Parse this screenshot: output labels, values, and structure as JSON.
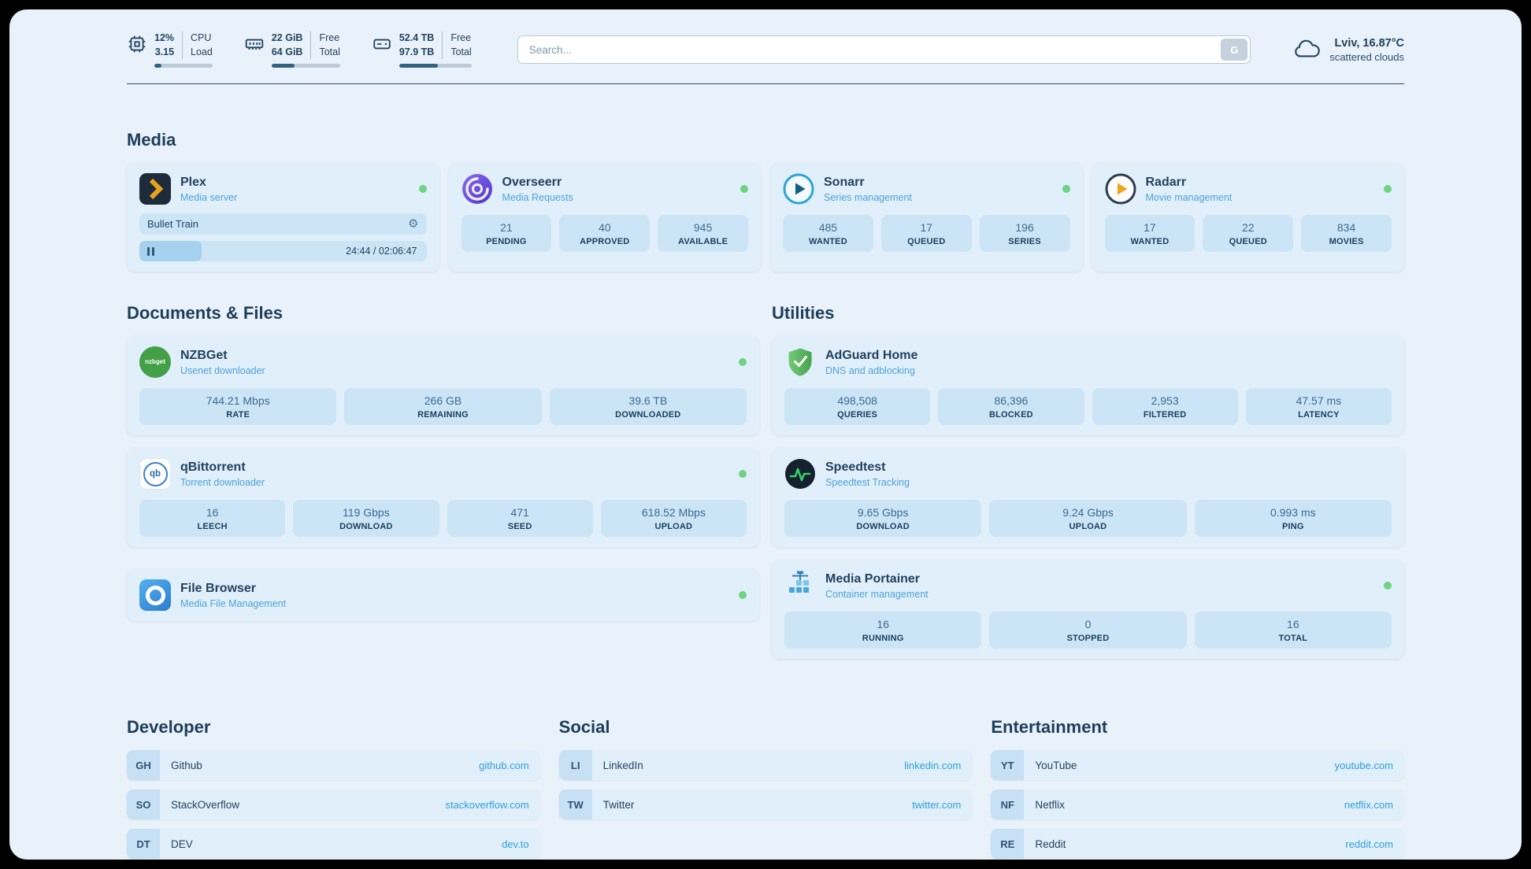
{
  "app": {
    "search_placeholder": "Search...",
    "search_button": "G"
  },
  "system": {
    "cpu": {
      "icon": "cpu-icon",
      "value_top": "12%",
      "value_bottom": "3.15",
      "label_top": "CPU",
      "label_bottom": "Load",
      "progress": 12
    },
    "ram": {
      "icon": "ram-icon",
      "value_top": "22 GiB",
      "value_bottom": "64 GiB",
      "label_top": "Free",
      "label_bottom": "Total",
      "progress": 34
    },
    "disk": {
      "icon": "disk-icon",
      "value_top": "52.4 TB",
      "value_bottom": "97.9 TB",
      "label_top": "Free",
      "label_bottom": "Total",
      "progress": 54
    }
  },
  "weather": {
    "icon": "cloud-icon",
    "location": "Lviv, 16.87°C",
    "condition": "scattered clouds"
  },
  "sections": {
    "media": {
      "title": "Media",
      "apps": [
        {
          "name": "Plex",
          "desc": "Media server",
          "icon": "plex-icon",
          "online": true,
          "player": {
            "title": "Bullet Train",
            "time": "24:44 / 02:06:47",
            "progress": 19
          }
        },
        {
          "name": "Overseerr",
          "desc": "Media Requests",
          "icon": "overseerr-icon",
          "online": true,
          "stats": [
            {
              "value": "21",
              "label": "PENDING"
            },
            {
              "value": "40",
              "label": "APPROVED"
            },
            {
              "value": "945",
              "label": "AVAILABLE"
            }
          ]
        },
        {
          "name": "Sonarr",
          "desc": "Series management",
          "icon": "sonarr-icon",
          "online": true,
          "stats": [
            {
              "value": "485",
              "label": "WANTED"
            },
            {
              "value": "17",
              "label": "QUEUED"
            },
            {
              "value": "196",
              "label": "SERIES"
            }
          ]
        },
        {
          "name": "Radarr",
          "desc": "Movie management",
          "icon": "radarr-icon",
          "online": true,
          "stats": [
            {
              "value": "17",
              "label": "WANTED"
            },
            {
              "value": "22",
              "label": "QUEUED"
            },
            {
              "value": "834",
              "label": "MOVIES"
            }
          ]
        }
      ]
    },
    "documents": {
      "title": "Documents & Files",
      "apps": [
        {
          "name": "NZBGet",
          "desc": "Usenet downloader",
          "icon": "nzbget-icon",
          "online": true,
          "stats": [
            {
              "value": "744.21 Mbps",
              "label": "RATE"
            },
            {
              "value": "266 GB",
              "label": "REMAINING"
            },
            {
              "value": "39.6 TB",
              "label": "DOWNLOADED"
            }
          ]
        },
        {
          "name": "qBittorrent",
          "desc": "Torrent downloader",
          "icon": "qbittorrent-icon",
          "online": true,
          "stats": [
            {
              "value": "16",
              "label": "LEECH"
            },
            {
              "value": "119 Gbps",
              "label": "DOWNLOAD"
            },
            {
              "value": "471",
              "label": "SEED"
            },
            {
              "value": "618.52 Mbps",
              "label": "UPLOAD"
            }
          ]
        },
        {
          "name": "File Browser",
          "desc": "Media File Management",
          "icon": "filebrowser-icon",
          "online": true,
          "stats": []
        }
      ]
    },
    "utilities": {
      "title": "Utilities",
      "apps": [
        {
          "name": "AdGuard Home",
          "desc": "DNS and adblocking",
          "icon": "adguard-icon",
          "online": false,
          "stats": [
            {
              "value": "498,508",
              "label": "QUERIES"
            },
            {
              "value": "86,396",
              "label": "BLOCKED"
            },
            {
              "value": "2,953",
              "label": "FILTERED"
            },
            {
              "value": "47.57 ms",
              "label": "LATENCY"
            }
          ]
        },
        {
          "name": "Speedtest",
          "desc": "Speedtest Tracking",
          "icon": "speedtest-icon",
          "online": false,
          "stats": [
            {
              "value": "9.65 Gbps",
              "label": "DOWNLOAD"
            },
            {
              "value": "9.24 Gbps",
              "label": "UPLOAD"
            },
            {
              "value": "0.993 ms",
              "label": "PING"
            }
          ]
        },
        {
          "name": "Media Portainer",
          "desc": "Container management",
          "icon": "portainer-icon",
          "online": true,
          "stats": [
            {
              "value": "16",
              "label": "RUNNING"
            },
            {
              "value": "0",
              "label": "STOPPED"
            },
            {
              "value": "16",
              "label": "TOTAL"
            }
          ]
        }
      ]
    },
    "bookmarks": [
      {
        "title": "Developer",
        "items": [
          {
            "abbr": "GH",
            "name": "Github",
            "url": "github.com"
          },
          {
            "abbr": "SO",
            "name": "StackOverflow",
            "url": "stackoverflow.com"
          },
          {
            "abbr": "DT",
            "name": "DEV",
            "url": "dev.to"
          }
        ]
      },
      {
        "title": "Social",
        "items": [
          {
            "abbr": "LI",
            "name": "LinkedIn",
            "url": "linkedin.com"
          },
          {
            "abbr": "TW",
            "name": "Twitter",
            "url": "twitter.com"
          }
        ]
      },
      {
        "title": "Entertainment",
        "items": [
          {
            "abbr": "YT",
            "name": "YouTube",
            "url": "youtube.com"
          },
          {
            "abbr": "NF",
            "name": "Netflix",
            "url": "netflix.com"
          },
          {
            "abbr": "RE",
            "name": "Reddit",
            "url": "reddit.com"
          }
        ]
      }
    ]
  },
  "colors": {
    "background": "#e9f2fa",
    "card": "#e1effb",
    "stat_box": "#cbe5f7",
    "accent_link": "#2f9fd9",
    "status_online": "#70d283",
    "heading_text": "#1d3d5a",
    "subtitle_text": "#4da3d9",
    "progress_fill": "#33617e"
  }
}
